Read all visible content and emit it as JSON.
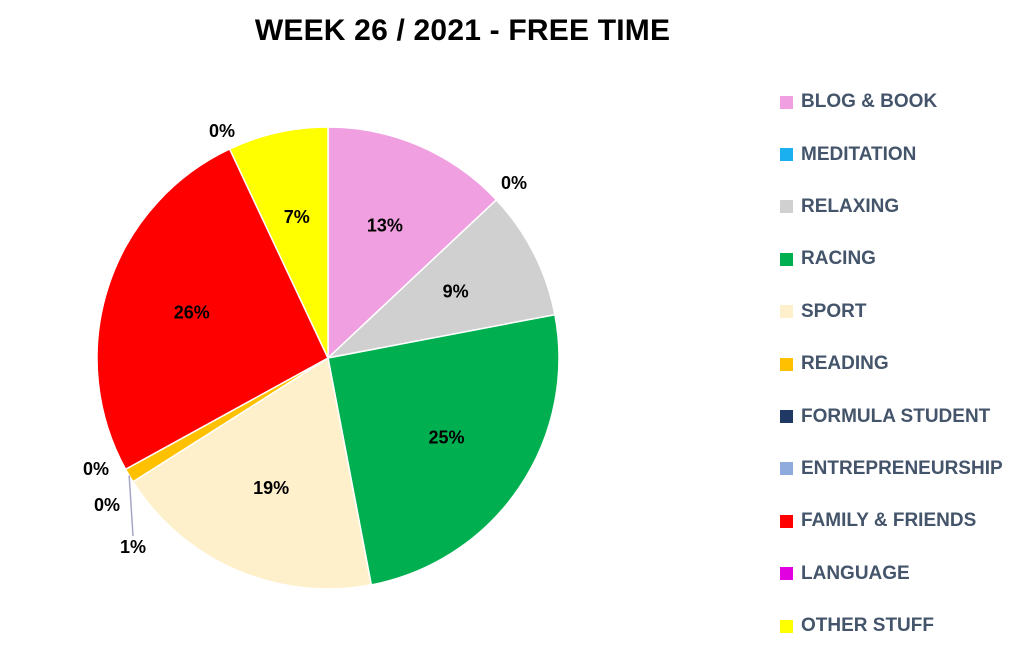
{
  "chart_data": {
    "type": "pie",
    "title": "WEEK 26 / 2021 - FREE TIME",
    "legend_position": "right",
    "slices": [
      {
        "name": "BLOG & BOOK",
        "value": 13,
        "label": "13%",
        "color": "#f0a0e0"
      },
      {
        "name": "MEDITATION",
        "value": 0,
        "label": "0%",
        "color": "#1ab0f0"
      },
      {
        "name": "RELAXING",
        "value": 9,
        "label": "9%",
        "color": "#d0d0d0"
      },
      {
        "name": "RACING",
        "value": 25,
        "label": "25%",
        "color": "#00b050"
      },
      {
        "name": "SPORT",
        "value": 19,
        "label": "19%",
        "color": "#fff0cc"
      },
      {
        "name": "READING",
        "value": 1,
        "label": "1%",
        "color": "#ffc000"
      },
      {
        "name": "FORMULA STUDENT",
        "value": 0,
        "label": "0%",
        "color": "#203864"
      },
      {
        "name": "ENTREPRENEURSHIP",
        "value": 0,
        "label": "0%",
        "color": "#8faadc"
      },
      {
        "name": "FAMILY & FRIENDS",
        "value": 26,
        "label": "26%",
        "color": "#ff0000"
      },
      {
        "name": "LANGUAGE",
        "value": 0,
        "label": "0%",
        "color": "#e000e0"
      },
      {
        "name": "OTHER STUFF",
        "value": 7,
        "label": "7%",
        "color": "#ffff00"
      }
    ]
  }
}
